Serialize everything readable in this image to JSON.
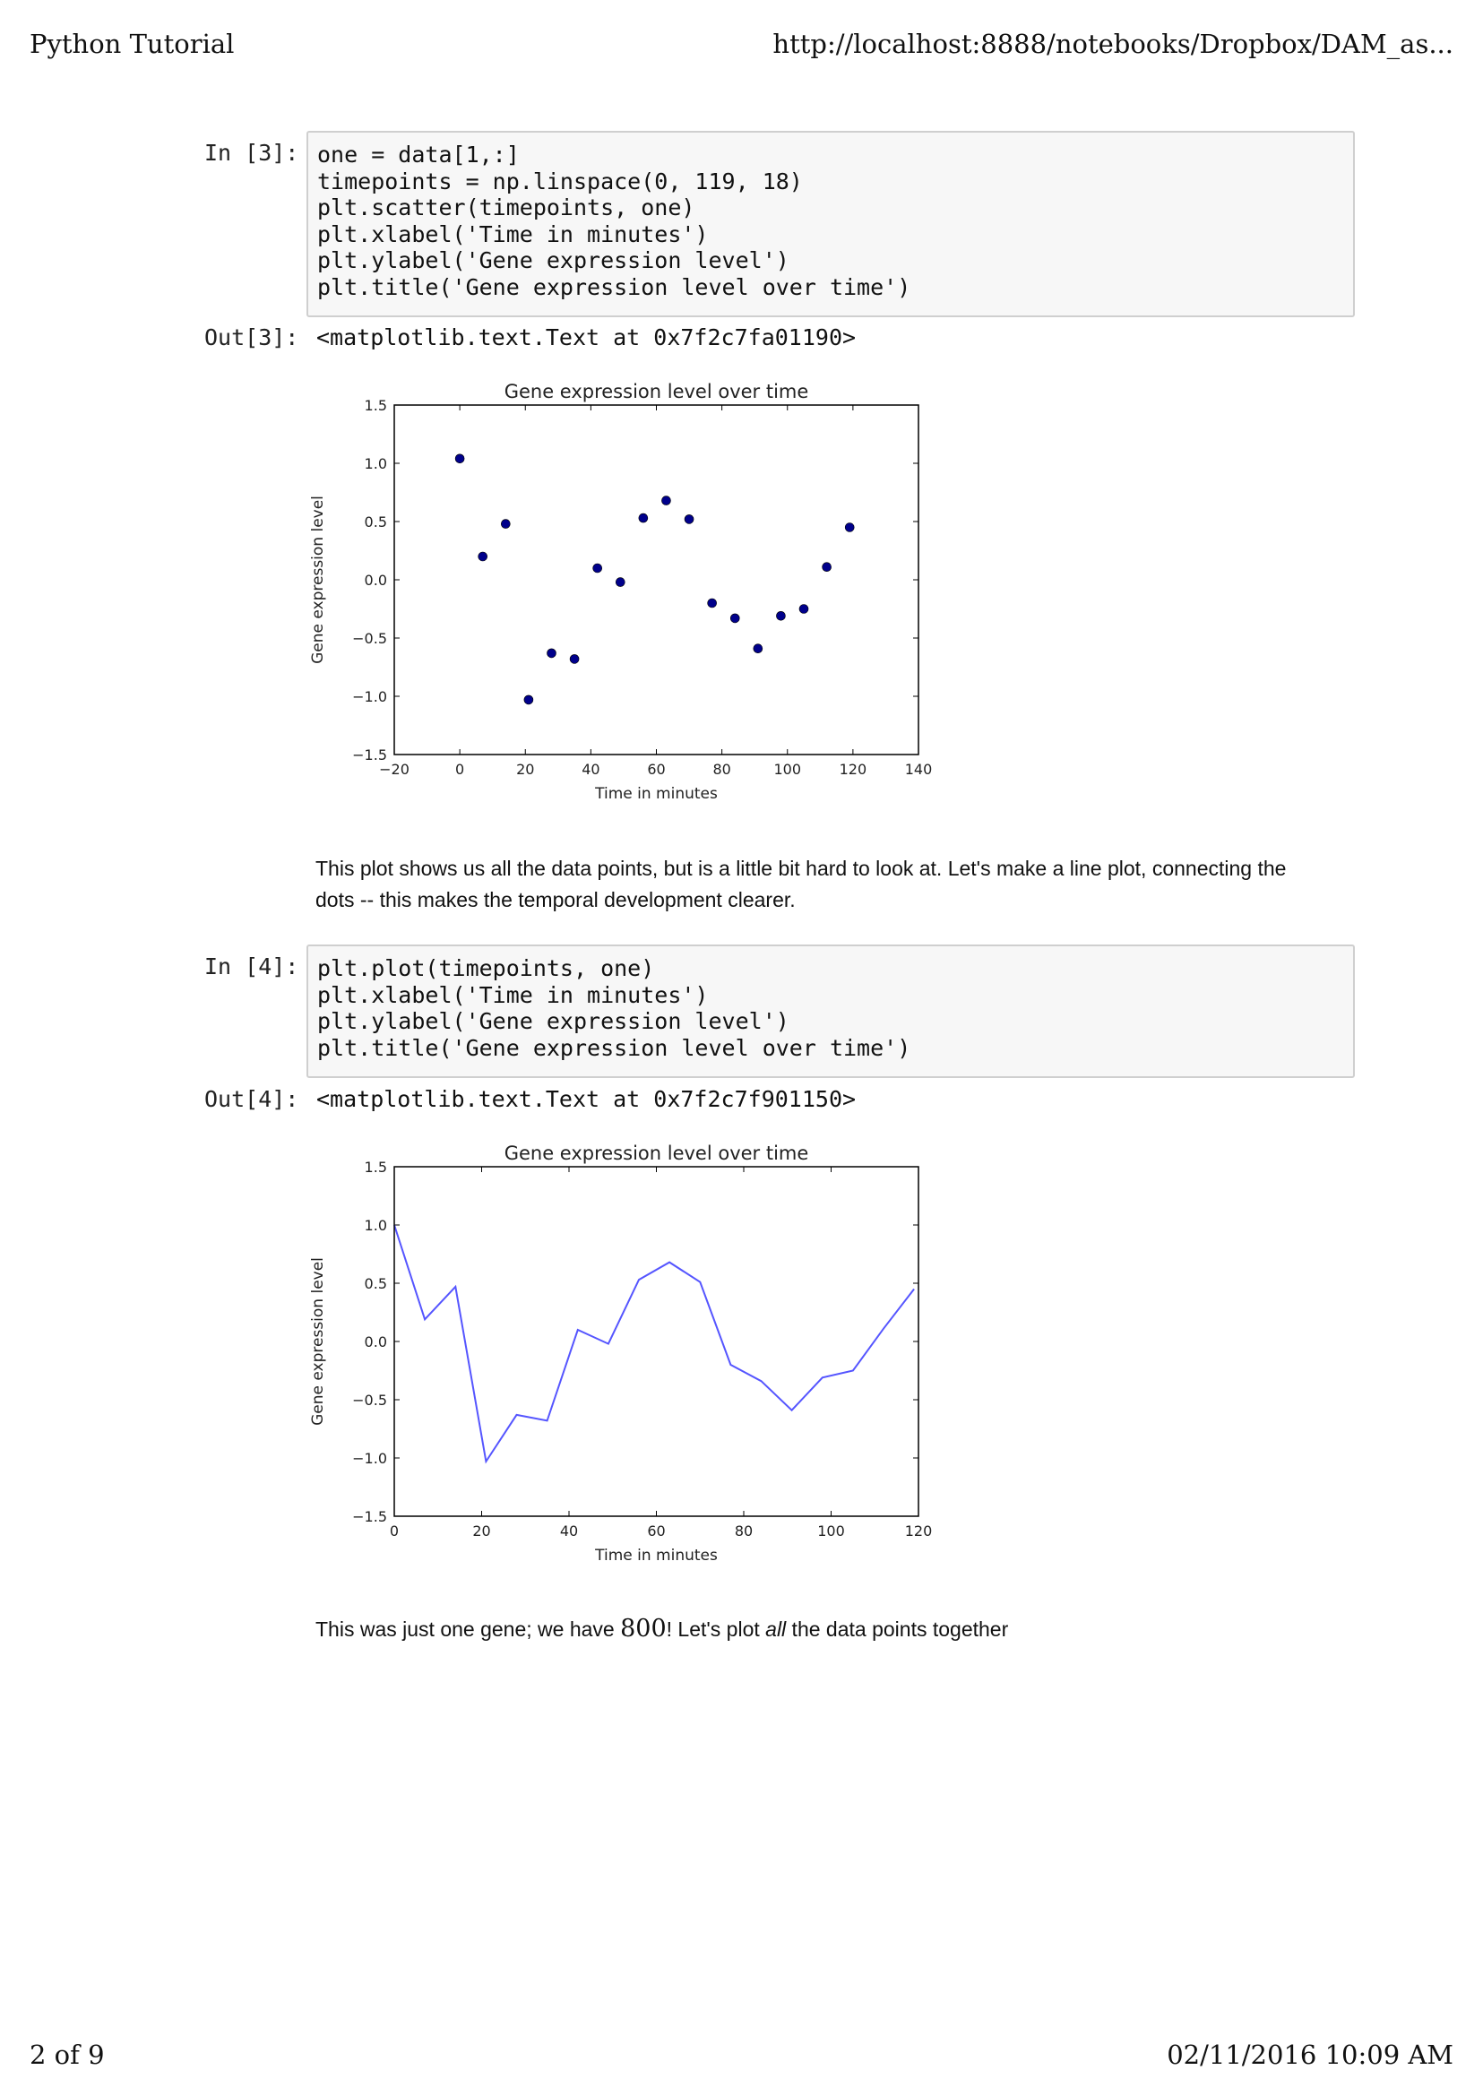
{
  "header": {
    "title": "Python Tutorial",
    "url": "http://localhost:8888/notebooks/Dropbox/DAM_as..."
  },
  "footer": {
    "page": "2 of 9",
    "datetime": "02/11/2016 10:09 AM"
  },
  "cells": {
    "in3": {
      "prompt": "In [3]:",
      "lines": [
        "one = data[1,:]",
        "timepoints = np.linspace(0, 119, 18)",
        "plt.scatter(timepoints, one)",
        "plt.xlabel('Time in minutes')",
        "plt.ylabel('Gene expression level')",
        "plt.title('Gene expression level over time')"
      ]
    },
    "out3": {
      "prompt": "Out[3]:",
      "text": "<matplotlib.text.Text at 0x7f2c7fa01190>"
    },
    "md1": {
      "line1": "This plot shows us all the data points, but is a little bit hard to look at. Let's make a line plot, connecting the",
      "line2": "dots -- this makes the temporal development clearer."
    },
    "in4": {
      "prompt": "In [4]:",
      "lines": [
        "plt.plot(timepoints, one)",
        "plt.xlabel('Time in minutes')",
        "plt.ylabel('Gene expression level')",
        "plt.title('Gene expression level over time')"
      ]
    },
    "out4": {
      "prompt": "Out[4]:",
      "text": "<matplotlib.text.Text at 0x7f2c7f901150>"
    },
    "md2": {
      "before": "This was just one gene; we have ",
      "number": "800",
      "middle": "! Let's plot ",
      "emph": "all",
      "after": " the data points together"
    }
  },
  "colors": {
    "scatter_point": "#00008b",
    "line": "#5555ff",
    "axes": "#000000"
  },
  "chart_data": [
    {
      "type": "scatter",
      "title": "Gene expression level over time",
      "xlabel": "Time in minutes",
      "ylabel": "Gene expression level",
      "xlim": [
        -20,
        140
      ],
      "ylim": [
        -1.5,
        1.5
      ],
      "xticks": [
        "−20",
        "0",
        "20",
        "40",
        "60",
        "80",
        "100",
        "120",
        "140"
      ],
      "yticks": [
        "−1.5",
        "−1.0",
        "−0.5",
        "0.0",
        "0.5",
        "1.0",
        "1.5"
      ],
      "x": [
        0,
        7,
        14,
        21,
        28,
        35,
        42,
        49,
        56,
        63,
        70,
        77,
        84,
        91,
        98,
        105,
        112,
        119
      ],
      "y": [
        1.04,
        0.2,
        0.48,
        -1.03,
        -0.63,
        -0.68,
        0.1,
        -0.02,
        0.53,
        0.68,
        0.52,
        -0.2,
        -0.33,
        -0.59,
        -0.31,
        -0.25,
        0.11,
        0.45
      ],
      "grid": false
    },
    {
      "type": "line",
      "title": "Gene expression level over time",
      "xlabel": "Time in minutes",
      "ylabel": "Gene expression level",
      "xlim": [
        0,
        120
      ],
      "ylim": [
        -1.5,
        1.5
      ],
      "xticks": [
        "0",
        "20",
        "40",
        "60",
        "80",
        "100",
        "120"
      ],
      "yticks": [
        "−1.5",
        "−1.0",
        "−0.5",
        "0.0",
        "0.5",
        "1.0",
        "1.5"
      ],
      "x": [
        0,
        7,
        14,
        21,
        28,
        35,
        42,
        49,
        56,
        63,
        70,
        77,
        84,
        91,
        98,
        105,
        112,
        119
      ],
      "y": [
        1.0,
        0.19,
        0.47,
        -1.03,
        -0.63,
        -0.68,
        0.1,
        -0.02,
        0.53,
        0.68,
        0.51,
        -0.2,
        -0.34,
        -0.59,
        -0.31,
        -0.25,
        0.11,
        0.45
      ],
      "grid": false
    }
  ]
}
